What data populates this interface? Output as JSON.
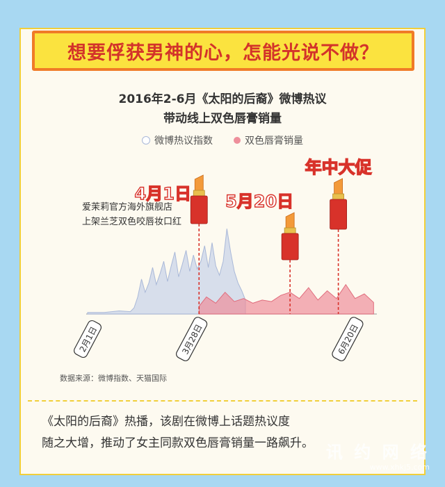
{
  "headline": "想要俘获男神的心，怎能光说不做？",
  "title_line1": "2016年2-6月《太阳的后裔》微博热议",
  "title_line2": "带动线上双色唇膏销量",
  "annotation_lines": [
    "爱茉莉官方海外旗舰店",
    "上架兰芝双色咬唇妆口红"
  ],
  "source": "数据来源：微博指数、天猫国际",
  "caption_lines": [
    "《太阳的后裔》热播，该剧在微博上话题热议度",
    "随之大增，推动了女主同款双色唇膏销量一路飙升。"
  ],
  "watermark": {
    "logo": "讯 约 网 络",
    "url": "www.xhkj5.com"
  },
  "colors": {
    "weibo": "#c9d4ea",
    "sales": "#ee8f9b",
    "accent": "#d8322a",
    "headline_bg": "#fbe33f",
    "headline_border": "#f07b27"
  },
  "chart_data": {
    "type": "area",
    "title": "2016年2-6月《太阳的后裔》微博热议 带动线上双色唇膏销量",
    "x_ticks": [
      "2月1日",
      "3月28日",
      "6月20日"
    ],
    "series": [
      {
        "name": "微博热议指数",
        "x": [
          "2016-02-01",
          "2016-02-10",
          "2016-02-18",
          "2016-02-24",
          "2016-02-26",
          "2016-02-28",
          "2016-03-01",
          "2016-03-03",
          "2016-03-05",
          "2016-03-07",
          "2016-03-09",
          "2016-03-11",
          "2016-03-13",
          "2016-03-15",
          "2016-03-17",
          "2016-03-19",
          "2016-03-21",
          "2016-03-23",
          "2016-03-25",
          "2016-03-27",
          "2016-03-29",
          "2016-03-31",
          "2016-04-02",
          "2016-04-04",
          "2016-04-06",
          "2016-04-08",
          "2016-04-10",
          "2016-04-12",
          "2016-04-14",
          "2016-04-16",
          "2016-04-18",
          "2016-04-20",
          "2016-04-22",
          "2016-04-24",
          "2016-04-26"
        ],
        "values": [
          2,
          2,
          4,
          3,
          8,
          22,
          45,
          28,
          40,
          60,
          38,
          52,
          68,
          42,
          62,
          80,
          48,
          64,
          82,
          55,
          76,
          58,
          68,
          88,
          60,
          92,
          62,
          50,
          68,
          110,
          80,
          55,
          40,
          30,
          18
        ]
      },
      {
        "name": "双色唇膏销量",
        "x": [
          "2016-04-01",
          "2016-04-05",
          "2016-04-10",
          "2016-04-15",
          "2016-04-20",
          "2016-04-25",
          "2016-04-30",
          "2016-05-05",
          "2016-05-10",
          "2016-05-15",
          "2016-05-20",
          "2016-05-25",
          "2016-05-30",
          "2016-06-04",
          "2016-06-09",
          "2016-06-14",
          "2016-06-19",
          "2016-06-24",
          "2016-06-29",
          "2016-07-04"
        ],
        "values": [
          10,
          22,
          14,
          28,
          16,
          20,
          14,
          18,
          16,
          24,
          28,
          20,
          34,
          18,
          30,
          20,
          38,
          20,
          26,
          15
        ]
      }
    ],
    "events": [
      {
        "label": "4月1日",
        "x": "2016-04-01"
      },
      {
        "label": "5月20日",
        "x": "2016-05-20"
      },
      {
        "label": "年中大促",
        "x": "2016-06-15"
      }
    ],
    "ylim": [
      0,
      120
    ]
  }
}
